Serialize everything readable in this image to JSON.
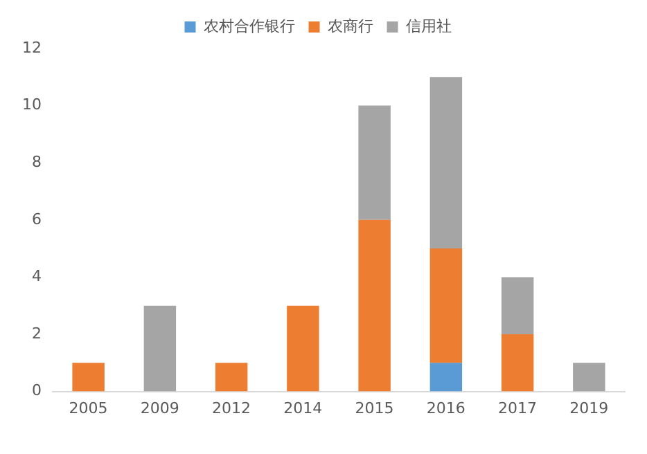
{
  "chart_data": {
    "type": "bar",
    "stacked": true,
    "categories": [
      "2005",
      "2009",
      "2012",
      "2014",
      "2015",
      "2016",
      "2017",
      "2019"
    ],
    "series": [
      {
        "name": "农村合作银行",
        "color": "#5b9bd5",
        "values": [
          0,
          0,
          0,
          0,
          0,
          1,
          0,
          0
        ]
      },
      {
        "name": "农商行",
        "color": "#ed7d31",
        "values": [
          1,
          0,
          1,
          3,
          6,
          4,
          2,
          0
        ]
      },
      {
        "name": "信用社",
        "color": "#a5a5a5",
        "values": [
          0,
          3,
          0,
          0,
          4,
          6,
          2,
          1
        ]
      }
    ],
    "ylim": [
      0,
      12
    ],
    "yticks": [
      0,
      2,
      4,
      6,
      8,
      10,
      12
    ],
    "grid": false,
    "legend": "top"
  }
}
